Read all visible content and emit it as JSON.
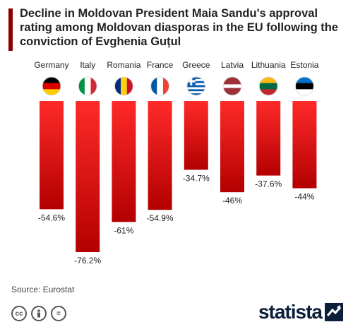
{
  "title": "Decline in Moldovan President Maia Sandu's approval rating among Moldovan diasporas in the EU following the conviction of Evghenia Guțul",
  "source": "Source: Eurostat",
  "brand": {
    "name": "statista"
  },
  "colors": {
    "accent": "#8b0000",
    "bar_top": "#ff2a2a",
    "bar_bottom": "#b30000"
  },
  "flag_icons": [
    "germany-flag-icon",
    "italy-flag-icon",
    "romania-flag-icon",
    "france-flag-icon",
    "greece-flag-icon",
    "latvia-flag-icon",
    "lithuania-flag-icon",
    "estonia-flag-icon"
  ],
  "license_icons": [
    "cc-icon",
    "attribution-icon",
    "no-derivatives-icon"
  ],
  "chart_data": {
    "type": "bar",
    "orientation": "vertical-downward",
    "title": "Decline in Moldovan President Maia Sandu's approval rating among Moldovan diasporas in the EU following the conviction of Evghenia Guțul",
    "categories": [
      "Germany",
      "Italy",
      "Romania",
      "France",
      "Greece",
      "Latvia",
      "Lithuania",
      "Estonia"
    ],
    "values": [
      -54.6,
      -76.2,
      -61,
      -54.9,
      -34.7,
      -46,
      -37.6,
      -44
    ],
    "value_labels": [
      "-54.6%",
      "-76.2%",
      "-61%",
      "-54.9%",
      "-34.7%",
      "-46%",
      "-37.6%",
      "-44%"
    ],
    "unit": "%",
    "grid": false,
    "legend": "none"
  }
}
